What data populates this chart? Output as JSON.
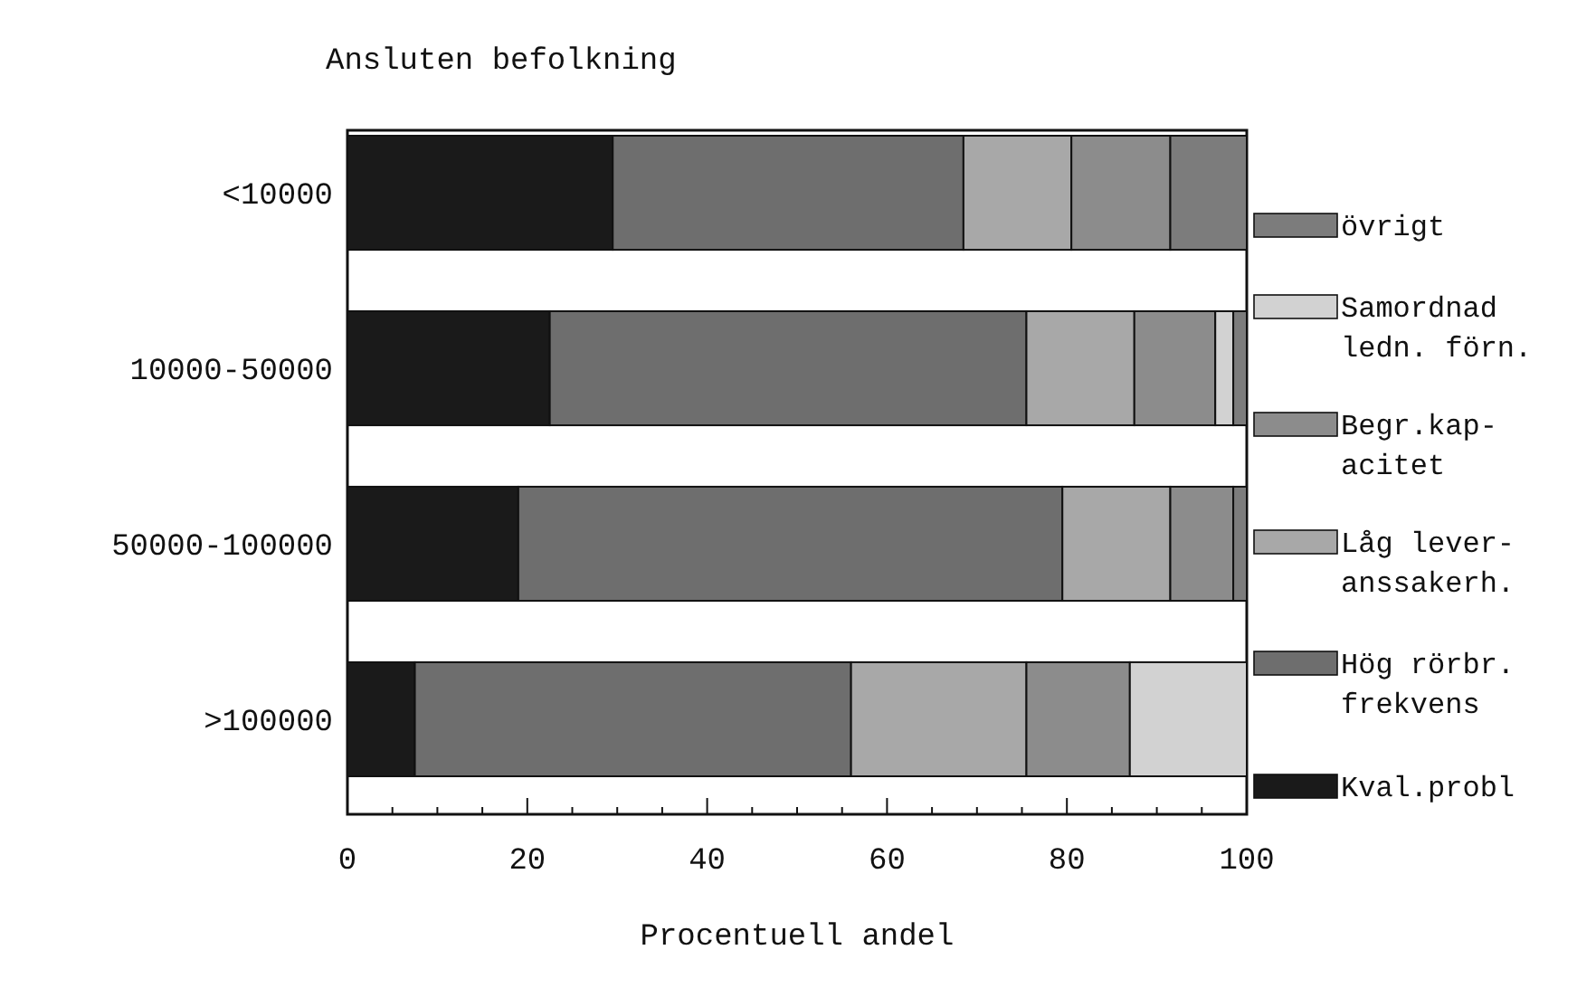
{
  "chart_data": {
    "type": "bar",
    "orientation": "horizontal",
    "stacked": true,
    "title": "Ansluten befolkning",
    "xlabel": "Procentuell andel",
    "categories": [
      "<10000",
      "10000-50000",
      "50000-100000",
      ">100000"
    ],
    "series": [
      {
        "name": "Kval.probl",
        "color": "#1a1a1a",
        "values": [
          29.5,
          22.5,
          19,
          7.5
        ]
      },
      {
        "name": "Hög rörbr.\nfrekvens",
        "color": "#6e6e6e",
        "values": [
          39,
          53,
          60.5,
          48.5
        ]
      },
      {
        "name": "Låg lever-\nanssakerh.",
        "color": "#a8a8a8",
        "values": [
          12,
          12,
          12,
          19.5
        ]
      },
      {
        "name": "Begr.kap-\nacitet",
        "color": "#8c8c8c",
        "values": [
          11,
          9,
          7,
          11.5
        ]
      },
      {
        "name": "Samordnad\nledn. förn.",
        "color": "#d2d2d2",
        "values": [
          0,
          2,
          0,
          13
        ]
      },
      {
        "name": "övrigt",
        "color": "#7c7c7c",
        "values": [
          8.5,
          1.5,
          1.5,
          0
        ]
      }
    ],
    "xlim": [
      0,
      100
    ],
    "xticks": [
      0,
      {
        "value": 5,
        "label": null
      },
      {
        "value": 10,
        "label": null
      },
      {
        "value": 15,
        "label": null
      },
      20,
      {
        "value": 25,
        "label": null
      },
      {
        "value": 30,
        "label": null
      },
      {
        "value": 35,
        "label": null
      },
      40,
      {
        "value": 45,
        "label": null
      },
      {
        "value": 50,
        "label": null
      },
      {
        "value": 55,
        "label": null
      },
      60,
      {
        "value": 65,
        "label": null
      },
      {
        "value": 70,
        "label": null
      },
      {
        "value": 75,
        "label": null
      },
      80,
      {
        "value": 85,
        "label": null
      },
      {
        "value": 90,
        "label": null
      },
      {
        "value": 95,
        "label": null
      },
      100
    ],
    "legend": "right"
  }
}
